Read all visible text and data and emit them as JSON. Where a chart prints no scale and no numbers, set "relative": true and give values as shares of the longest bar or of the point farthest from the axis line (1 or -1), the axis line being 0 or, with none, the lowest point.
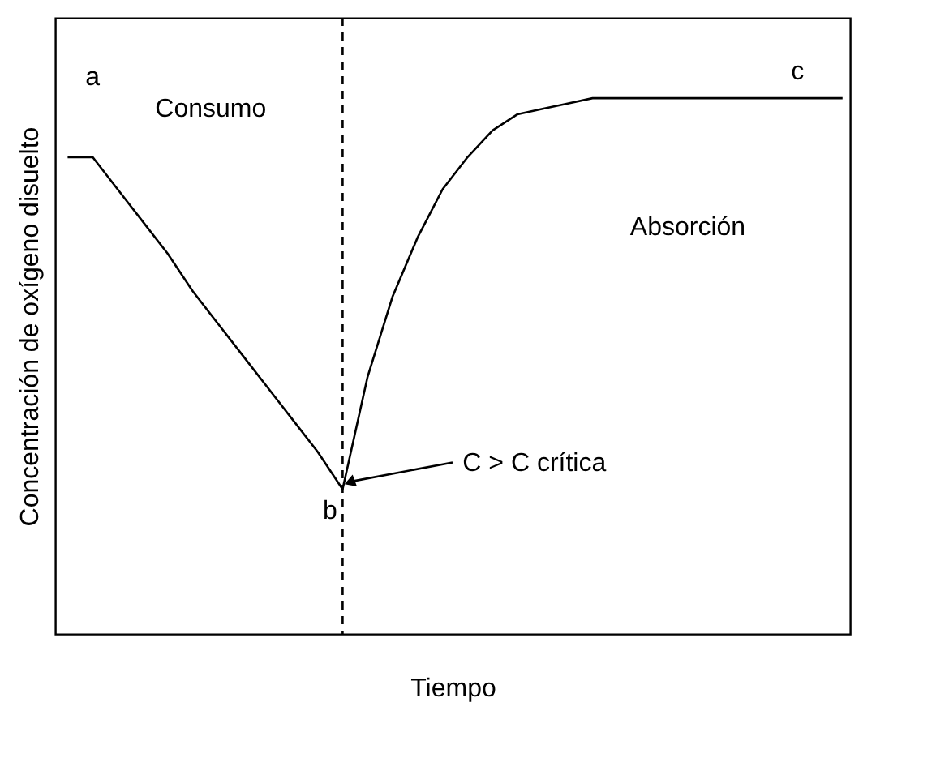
{
  "chart_data": {
    "type": "line",
    "relative": true,
    "xlabel": "Tiempo",
    "ylabel": "Concentración de oxígeno disuelto",
    "categories": [
      null,
      null,
      null,
      null,
      null,
      null,
      null,
      null,
      null,
      null,
      null,
      null,
      null,
      null,
      null,
      null,
      null,
      null,
      null,
      null,
      null,
      null,
      null,
      null,
      null,
      null,
      null,
      null,
      null,
      null,
      null,
      null
    ],
    "series": [
      {
        "color": "#000000",
        "values": [
          0.89,
          0.89,
          0.83,
          0.77,
          0.71,
          0.64,
          0.58,
          0.52,
          0.46,
          0.4,
          0.34,
          0.27,
          0.48,
          0.63,
          0.74,
          0.83,
          0.89,
          0.94,
          0.97,
          0.98,
          0.99,
          1.0,
          1,
          1,
          1,
          1,
          1,
          1,
          1,
          1,
          1,
          1
        ]
      }
    ],
    "annotations": [
      "a",
      "Consumo",
      "b",
      "C > C crítica",
      "Absorción",
      "c"
    ],
    "marker": "none",
    "line_style": "solid"
  }
}
